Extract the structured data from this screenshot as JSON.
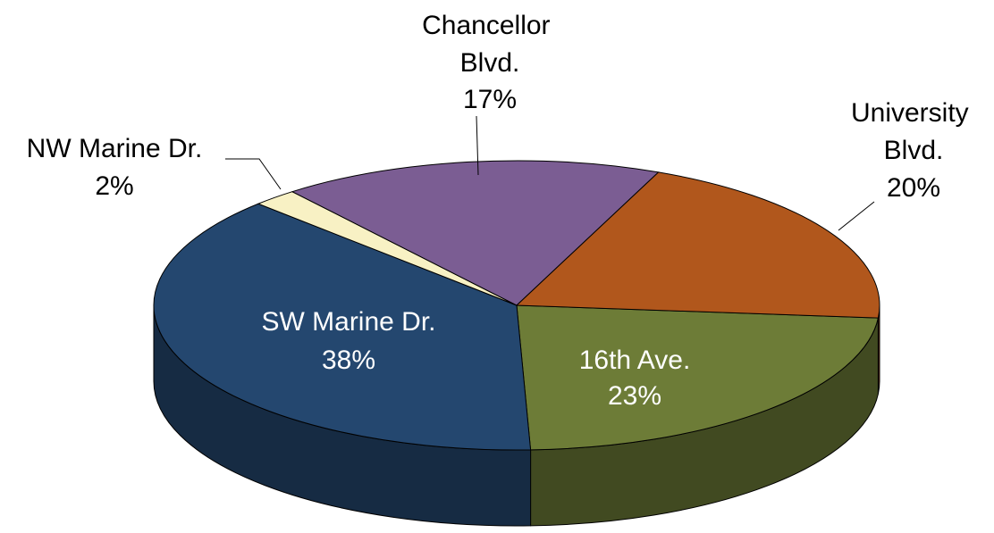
{
  "chart_data": {
    "type": "pie",
    "three_d": true,
    "categories": [
      "16th Ave.",
      "SW Marine Dr.",
      "NW Marine Dr.",
      "Chancellor Blvd.",
      "University Blvd."
    ],
    "values": [
      23,
      38,
      2,
      17,
      20
    ],
    "value_labels": [
      "23%",
      "38%",
      "2%",
      "17%",
      "20%"
    ],
    "colors": [
      "#6d7c37",
      "#24476f",
      "#f8f1c4",
      "#7b5d93",
      "#b1571c"
    ]
  }
}
